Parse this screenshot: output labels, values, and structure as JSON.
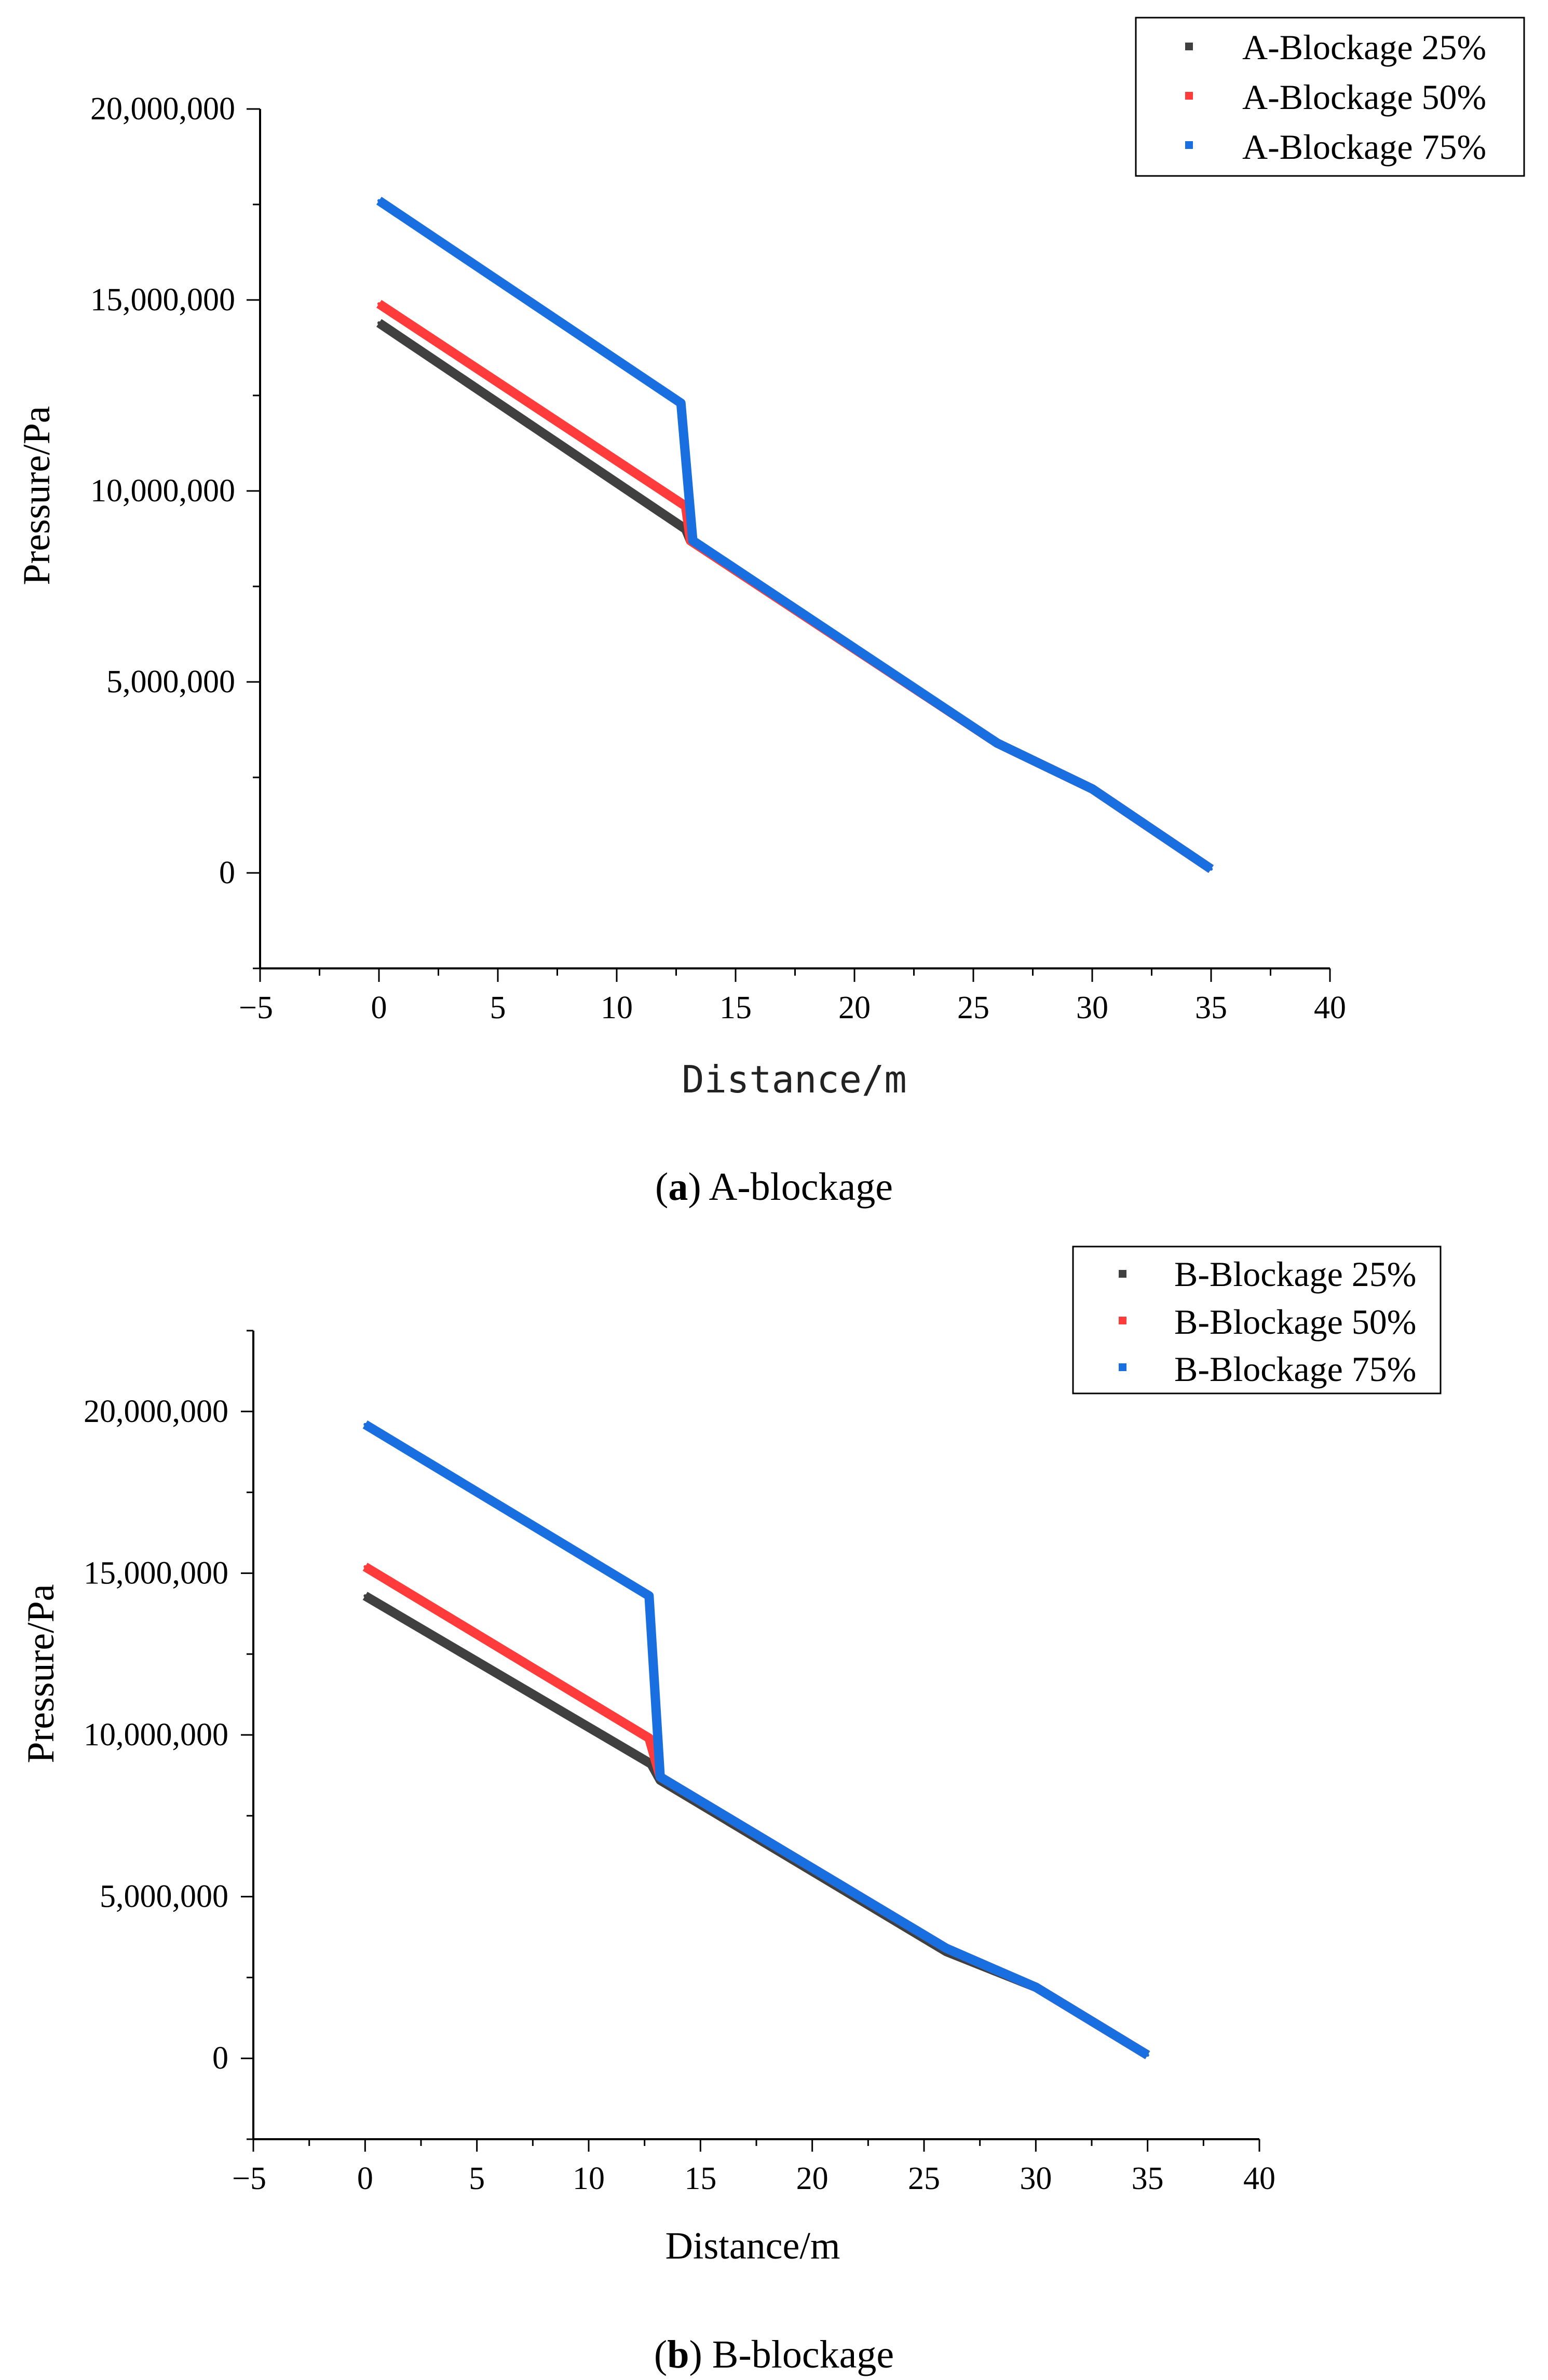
{
  "chart_data": [
    {
      "type": "line",
      "panel_id": "a",
      "caption": {
        "letter": "a",
        "text": "A-blockage"
      },
      "xlabel": "Distance/m",
      "ylabel": "Pressure/Pa",
      "xlim": [
        -5,
        40
      ],
      "ylim": [
        -2500000,
        20000000
      ],
      "xticks": [
        -5,
        0,
        5,
        10,
        15,
        20,
        25,
        30,
        35,
        40
      ],
      "xtick_labels": [
        "−5",
        "0",
        "5",
        "10",
        "15",
        "20",
        "25",
        "30",
        "35",
        "40"
      ],
      "yticks": [
        0,
        5000000,
        10000000,
        15000000,
        20000000
      ],
      "ytick_labels": [
        "0",
        "5,000,000",
        "10,000,000",
        "15,000,000",
        "20,000,000"
      ],
      "legend_position": "top-right",
      "series": [
        {
          "name": "A-Blockage 25%",
          "color": "#404040",
          "x": [
            0,
            12.9,
            13.1,
            26,
            30,
            35
          ],
          "y": [
            14400000,
            9000000,
            8700000,
            3400000,
            2200000,
            100000
          ]
        },
        {
          "name": "A-Blockage 50%",
          "color": "#ff3b3b",
          "x": [
            0,
            12.9,
            13.1,
            26,
            30,
            35
          ],
          "y": [
            14900000,
            9600000,
            8700000,
            3400000,
            2200000,
            100000
          ]
        },
        {
          "name": "A-Blockage 75%",
          "color": "#1a6fe0",
          "x": [
            0,
            12.7,
            13.2,
            26,
            30,
            35
          ],
          "y": [
            17600000,
            12300000,
            8700000,
            3400000,
            2200000,
            100000
          ]
        }
      ]
    },
    {
      "type": "line",
      "panel_id": "b",
      "caption": {
        "letter": "b",
        "text": "B-blockage"
      },
      "xlabel": "Distance/m",
      "ylabel": "Pressure/Pa",
      "xlim": [
        -5,
        40
      ],
      "ylim": [
        -2500000,
        22500000
      ],
      "xticks": [
        -5,
        0,
        5,
        10,
        15,
        20,
        25,
        30,
        35,
        40
      ],
      "xtick_labels": [
        "−5",
        "0",
        "5",
        "10",
        "15",
        "20",
        "25",
        "30",
        "35",
        "40"
      ],
      "yticks": [
        0,
        5000000,
        10000000,
        15000000,
        20000000
      ],
      "ytick_labels": [
        "0",
        "5,000,000",
        "10,000,000",
        "15,000,000",
        "20,000,000"
      ],
      "legend_position": "top-right",
      "series": [
        {
          "name": "B-Blockage 25%",
          "color": "#404040",
          "x": [
            0,
            12.8,
            13.2,
            26,
            30,
            35
          ],
          "y": [
            14300000,
            9100000,
            8600000,
            3300000,
            2200000,
            100000
          ]
        },
        {
          "name": "B-Blockage 50%",
          "color": "#ff3b3b",
          "x": [
            0,
            12.7,
            13.2,
            26,
            30,
            35
          ],
          "y": [
            15200000,
            9900000,
            8700000,
            3400000,
            2200000,
            100000
          ]
        },
        {
          "name": "B-Blockage 75%",
          "color": "#1a6fe0",
          "x": [
            0,
            12.7,
            13.2,
            26,
            30,
            35
          ],
          "y": [
            19600000,
            14300000,
            8700000,
            3400000,
            2200000,
            100000
          ]
        }
      ]
    }
  ]
}
